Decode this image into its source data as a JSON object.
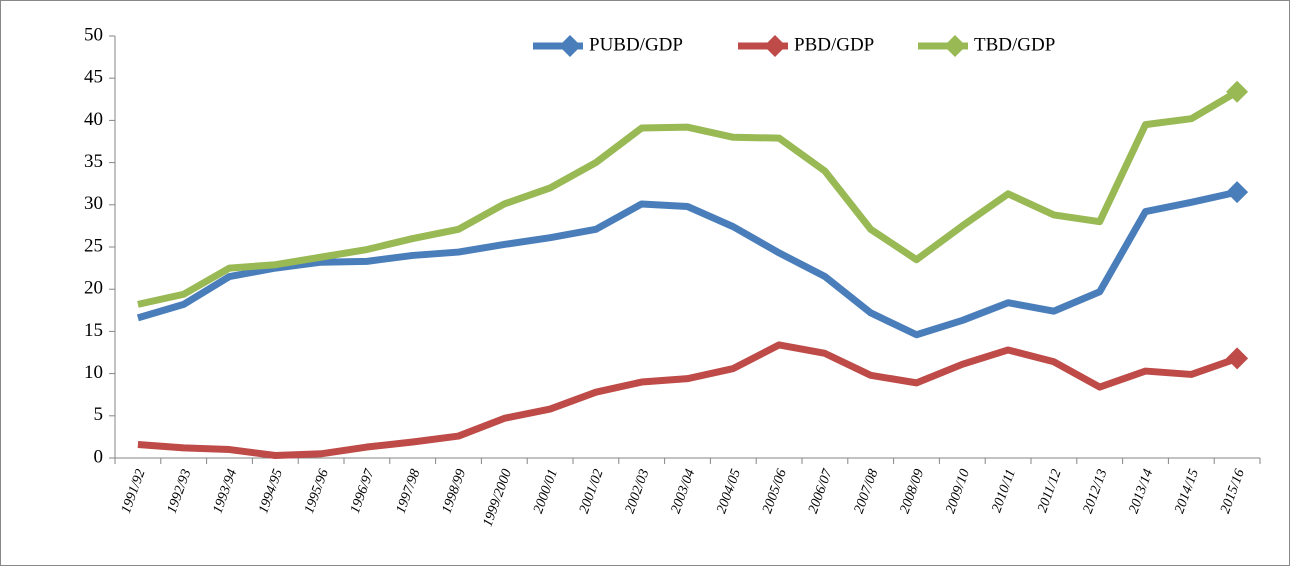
{
  "chart_data": {
    "type": "line",
    "categories": [
      "1991/92",
      "1992/93",
      "1993/94",
      "1994/95",
      "1995/96",
      "1996/97",
      "1997/98",
      "1998/99",
      "1999/2000",
      "2000/01",
      "2001/02",
      "2002/03",
      "2003/04",
      "2004/05",
      "2005/06",
      "2006/07",
      "2007/08",
      "2008/09",
      "2009/10",
      "2010/11",
      "2011/12",
      "2012/13",
      "2013/14",
      "2014/15",
      "2015/16"
    ],
    "series": [
      {
        "name": "PUBD/GDP",
        "color": "#4a7ebb",
        "values": [
          16.6,
          18.2,
          21.5,
          22.5,
          23.2,
          23.3,
          24.0,
          24.4,
          25.3,
          26.1,
          27.1,
          30.1,
          29.8,
          27.4,
          24.3,
          21.5,
          17.2,
          14.6,
          16.3,
          18.4,
          17.4,
          19.7,
          29.2,
          30.3,
          31.5
        ]
      },
      {
        "name": "PBD/GDP",
        "color": "#be4b48",
        "values": [
          1.6,
          1.2,
          1.0,
          0.3,
          0.5,
          1.3,
          1.9,
          2.6,
          4.7,
          5.8,
          7.8,
          9.0,
          9.4,
          10.6,
          13.4,
          12.4,
          9.8,
          8.9,
          11.1,
          12.8,
          11.4,
          8.4,
          10.3,
          9.9,
          11.8
        ]
      },
      {
        "name": "TBD/GDP",
        "color": "#98b954",
        "values": [
          18.2,
          19.4,
          22.5,
          22.9,
          23.8,
          24.7,
          26.0,
          27.1,
          30.1,
          32.0,
          35.0,
          39.1,
          39.2,
          38.0,
          37.9,
          34.0,
          27.1,
          23.5,
          27.5,
          31.3,
          28.8,
          28.0,
          39.5,
          40.2,
          43.4
        ]
      }
    ],
    "ylim": [
      0,
      50
    ],
    "yticks": [
      0,
      5,
      10,
      15,
      20,
      25,
      30,
      35,
      40,
      45,
      50
    ],
    "legend": "top"
  }
}
